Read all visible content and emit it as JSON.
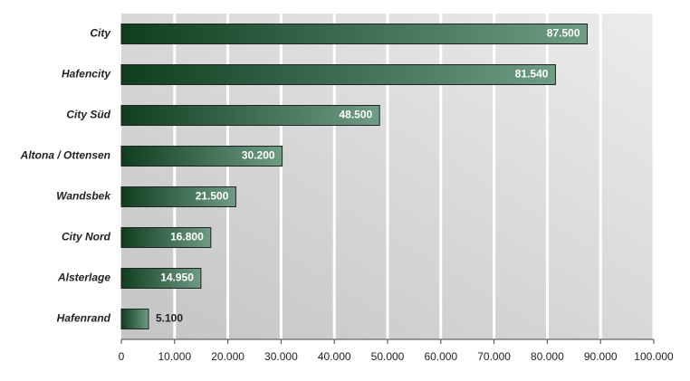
{
  "chart_data": {
    "type": "bar",
    "orientation": "horizontal",
    "categories": [
      "City",
      "Hafencity",
      "City Süd",
      "Altona / Ottensen",
      "Wandsbek",
      "City Nord",
      "Alsterlage",
      "Hafenrand"
    ],
    "values": [
      87500,
      81540,
      48500,
      30200,
      21500,
      16800,
      14950,
      5100
    ],
    "value_labels": [
      "87.500",
      "81.540",
      "48.500",
      "30.200",
      "21.500",
      "16.800",
      "14.950",
      "5.100"
    ],
    "color": "#0f3d1f",
    "xlim": [
      0,
      100000
    ],
    "xticks": [
      0,
      {
        "value": 10000,
        "label": "10.000"
      },
      {
        "value": 20000,
        "label": "20.000"
      },
      {
        "value": 30000,
        "label": "30.000"
      },
      {
        "value": 40000,
        "label": "40.000"
      },
      {
        "value": 50000,
        "label": "50.000"
      },
      {
        "value": 60000,
        "label": "60.000"
      },
      {
        "value": 70000,
        "label": "70.000"
      },
      {
        "value": 80000,
        "label": "80.000"
      },
      {
        "value": 90000,
        "label": "90.000"
      },
      {
        "value": 100000,
        "label": "100.000"
      }
    ],
    "grid": true
  }
}
